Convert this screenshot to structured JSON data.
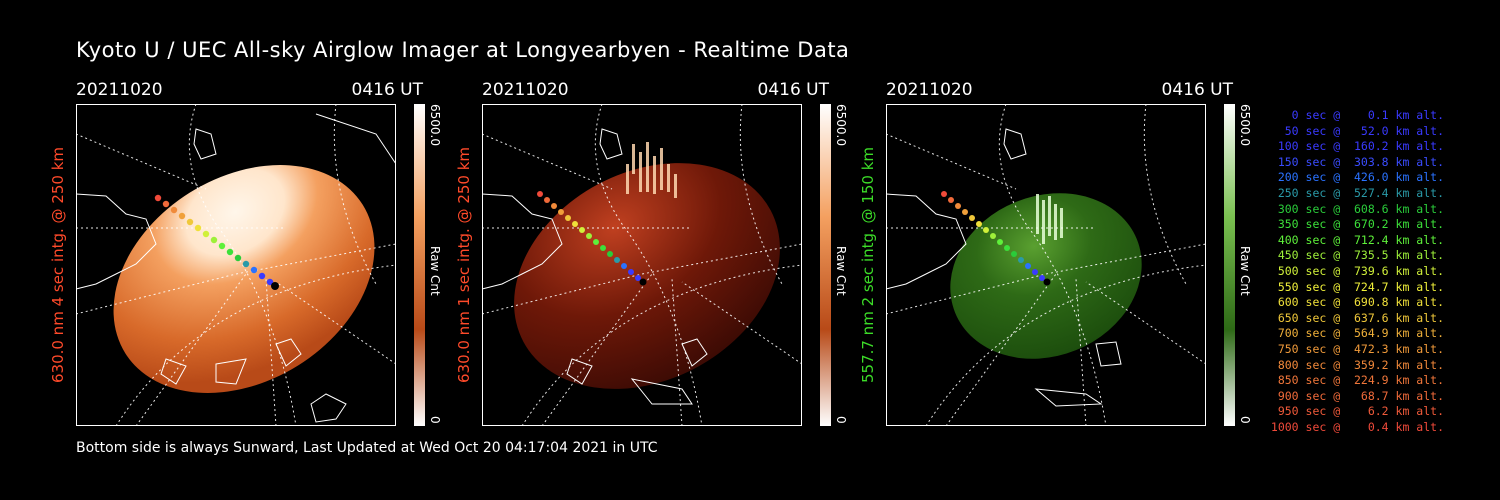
{
  "title": "Kyoto U / UEC All-sky Airglow Imager at Longyearbyen - Realtime Data",
  "footer": "Bottom side is always Sunward, Last Updated at Wed Oct 20 04:17:04 2021 in UTC",
  "panels": [
    {
      "date": "20211020",
      "time": "0416 UT",
      "vlabel": "630.0 nm 4 sec intg. @ 250 km",
      "label_color": "#ff4a2a",
      "colorbar_max": "6500.0",
      "colorbar_unit": "Raw Cnt",
      "colorbar_min": "0",
      "palette": "red",
      "image": "bright red airglow all-sky image"
    },
    {
      "date": "20211020",
      "time": "0416 UT",
      "vlabel": "630.0 nm 1 sec intg. @ 250 km",
      "label_color": "#ff4a2a",
      "colorbar_max": "6500.0",
      "colorbar_unit": "Raw Cnt",
      "colorbar_min": "0",
      "palette": "red",
      "image": "dark red airglow all-sky image"
    },
    {
      "date": "20211020",
      "time": "0416 UT",
      "vlabel": "557.7 nm 2 sec intg. @ 150 km",
      "label_color": "#3cdc28",
      "colorbar_max": "6500.0",
      "colorbar_unit": "Raw Cnt",
      "colorbar_min": "0",
      "palette": "green",
      "image": "green airglow all-sky image"
    }
  ],
  "legend": [
    {
      "text": "0 sec @    0.1 km alt.",
      "color": "#3a3aff"
    },
    {
      "text": "50 sec @   52.0 km alt.",
      "color": "#3a3aff"
    },
    {
      "text": "100 sec @  160.2 km alt.",
      "color": "#3a3aff"
    },
    {
      "text": "150 sec @  303.8 km alt.",
      "color": "#3a4cff"
    },
    {
      "text": "200 sec @  426.0 km alt.",
      "color": "#2a72ff"
    },
    {
      "text": "250 sec @  527.4 km alt.",
      "color": "#2a9aa8"
    },
    {
      "text": "300 sec @  608.6 km alt.",
      "color": "#2acc3a"
    },
    {
      "text": "350 sec @  670.2 km alt.",
      "color": "#3ce03a"
    },
    {
      "text": "400 sec @  712.4 km alt.",
      "color": "#5ef03a"
    },
    {
      "text": "450 sec @  735.5 km alt.",
      "color": "#9ef03a"
    },
    {
      "text": "500 sec @  739.6 km alt.",
      "color": "#d0f03a"
    },
    {
      "text": "550 sec @  724.7 km alt.",
      "color": "#f0f03a"
    },
    {
      "text": "600 sec @  690.8 km alt.",
      "color": "#f0e03a"
    },
    {
      "text": "650 sec @  637.6 km alt.",
      "color": "#f0c83a"
    },
    {
      "text": "700 sec @  564.9 km alt.",
      "color": "#f0b03a"
    },
    {
      "text": "750 sec @  472.3 km alt.",
      "color": "#f09a3a"
    },
    {
      "text": "800 sec @  359.2 km alt.",
      "color": "#f0883a"
    },
    {
      "text": "850 sec @  224.9 km alt.",
      "color": "#f0763a"
    },
    {
      "text": "900 sec @   68.7 km alt.",
      "color": "#f06a3a"
    },
    {
      "text": "950 sec @    6.2 km alt.",
      "color": "#f05a3a"
    },
    {
      "text": "1000 sec @    0.4 km alt.",
      "color": "#f04a3a"
    }
  ]
}
